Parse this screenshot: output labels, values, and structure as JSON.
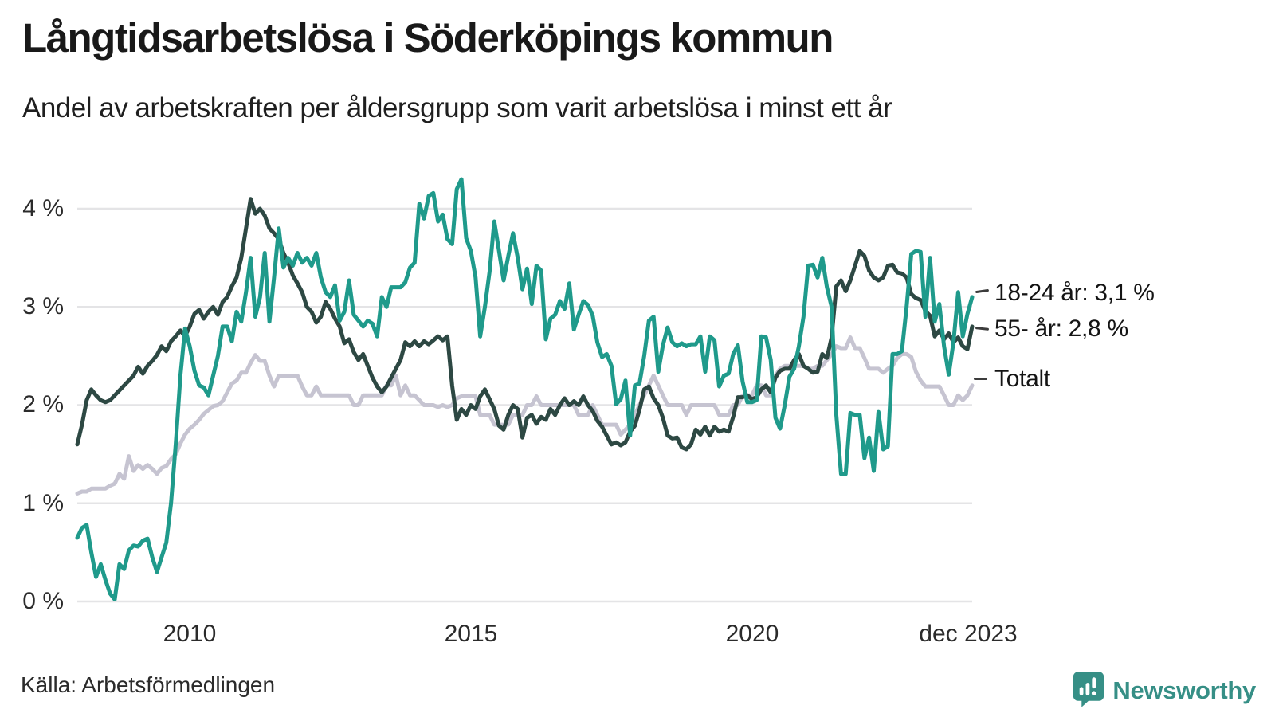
{
  "header": {
    "title": "Långtidsarbetslösa i Söderköpings kommun",
    "subtitle": "Andel av arbetskraften per åldersgrupp som varit arbetslösa i minst ett år"
  },
  "footer": {
    "source": "Källa: Arbetsförmedlingen",
    "brand": "Newsworthy"
  },
  "colors": {
    "series_18_24": "#1f9a8b",
    "series_55": "#2d4843",
    "series_total": "#c6c4d1",
    "gridline": "#e4e4e6",
    "brand_teal": "#368f86"
  },
  "chart_data": {
    "type": "line",
    "title": "Långtidsarbetslösa i Söderköpings kommun",
    "subtitle": "Andel av arbetskraften per åldersgrupp som varit arbetslösa i minst ett år",
    "unit": "%",
    "grid": true,
    "legend_position": "right-end-labels",
    "x_time": {
      "start_year": 2008,
      "start_month": 1,
      "end_label": "dec 2023",
      "frequency": "monthly"
    },
    "ylim": [
      0,
      4.38
    ],
    "y_ticks": [
      {
        "value": 0,
        "label": "0 %"
      },
      {
        "value": 1,
        "label": "1 %"
      },
      {
        "value": 2,
        "label": "2 %"
      },
      {
        "value": 3,
        "label": "3 %"
      },
      {
        "value": 4,
        "label": "4 %"
      }
    ],
    "x_ticks": [
      {
        "month_index": 24,
        "label": "2010"
      },
      {
        "month_index": 84,
        "label": "2015"
      },
      {
        "month_index": 144,
        "label": "2020"
      },
      {
        "month_index": 191,
        "label": "dec 2023"
      }
    ],
    "series": [
      {
        "name": "18-24 år",
        "end_label": "18-24 år: 3,1 %",
        "end_value": "3,1 %",
        "color": "#1f9a8b",
        "stroke_width": 5,
        "values": [
          0.65,
          0.75,
          0.78,
          0.5,
          0.25,
          0.38,
          0.22,
          0.08,
          0.02,
          0.38,
          0.33,
          0.52,
          0.57,
          0.56,
          0.62,
          0.64,
          0.45,
          0.3,
          0.45,
          0.6,
          1.0,
          1.6,
          2.3,
          2.78,
          2.6,
          2.35,
          2.2,
          2.18,
          2.1,
          2.3,
          2.5,
          2.8,
          2.8,
          2.65,
          2.95,
          2.85,
          3.15,
          3.5,
          2.9,
          3.1,
          3.55,
          2.85,
          3.3,
          3.8,
          3.4,
          3.5,
          3.42,
          3.55,
          3.45,
          3.5,
          3.42,
          3.55,
          3.3,
          3.15,
          3.1,
          3.22,
          2.86,
          2.95,
          3.27,
          2.92,
          2.86,
          2.8,
          2.86,
          2.83,
          2.7,
          3.1,
          3.0,
          3.2,
          3.2,
          3.2,
          3.25,
          3.4,
          3.45,
          4.05,
          3.9,
          4.13,
          4.16,
          3.87,
          3.94,
          3.69,
          3.64,
          4.2,
          4.3,
          3.7,
          3.57,
          3.3,
          2.7,
          3.0,
          3.36,
          3.87,
          3.57,
          3.27,
          3.52,
          3.75,
          3.5,
          3.18,
          3.39,
          3.03,
          3.42,
          3.37,
          2.67,
          2.88,
          2.92,
          3.06,
          2.98,
          3.24,
          2.77,
          2.92,
          3.06,
          3.02,
          2.91,
          2.64,
          2.49,
          2.52,
          2.4,
          2.01,
          2.06,
          2.25,
          1.69,
          2.2,
          2.22,
          2.5,
          2.86,
          2.9,
          2.34,
          2.61,
          2.79,
          2.64,
          2.6,
          2.63,
          2.6,
          2.62,
          2.62,
          2.7,
          2.34,
          2.7,
          2.66,
          2.19,
          2.3,
          2.32,
          2.52,
          2.61,
          2.24,
          2.03,
          2.03,
          2.05,
          2.7,
          2.69,
          2.46,
          1.87,
          1.76,
          2.0,
          2.29,
          2.37,
          2.6,
          2.9,
          3.42,
          3.43,
          3.3,
          3.5,
          3.2,
          3.0,
          1.9,
          1.3,
          1.3,
          1.92,
          1.9,
          1.9,
          1.46,
          1.67,
          1.33,
          1.93,
          1.55,
          1.58,
          2.52,
          2.52,
          2.55,
          3.0,
          3.54,
          3.57,
          3.56,
          2.9,
          3.5,
          2.85,
          3.03,
          2.6,
          2.31,
          2.64,
          3.15,
          2.7,
          2.93,
          3.1
        ]
      },
      {
        "name": "55- år",
        "end_label": "55- år: 2,8 %",
        "end_value": "2,8 %",
        "color": "#2d4843",
        "stroke_width": 5,
        "values": [
          1.6,
          1.8,
          2.05,
          2.16,
          2.1,
          2.05,
          2.03,
          2.05,
          2.1,
          2.15,
          2.2,
          2.25,
          2.3,
          2.39,
          2.32,
          2.4,
          2.45,
          2.51,
          2.6,
          2.55,
          2.65,
          2.7,
          2.76,
          2.7,
          2.8,
          2.93,
          2.97,
          2.88,
          2.95,
          3.0,
          2.92,
          3.05,
          3.1,
          3.21,
          3.3,
          3.5,
          3.8,
          4.1,
          3.95,
          4.0,
          3.93,
          3.8,
          3.75,
          3.69,
          3.55,
          3.45,
          3.32,
          3.24,
          3.15,
          3.0,
          2.95,
          2.84,
          2.9,
          3.05,
          2.98,
          2.88,
          2.8,
          2.63,
          2.67,
          2.54,
          2.46,
          2.52,
          2.4,
          2.28,
          2.19,
          2.13,
          2.19,
          2.28,
          2.37,
          2.46,
          2.64,
          2.6,
          2.65,
          2.6,
          2.65,
          2.62,
          2.66,
          2.7,
          2.66,
          2.7,
          2.2,
          1.85,
          1.96,
          1.9,
          2.0,
          1.96,
          2.09,
          2.16,
          2.06,
          1.96,
          1.79,
          1.75,
          1.9,
          2.0,
          1.96,
          1.67,
          1.87,
          1.9,
          1.81,
          1.88,
          1.85,
          1.96,
          1.9,
          2.0,
          2.07,
          2.0,
          2.04,
          2.0,
          2.09,
          2.0,
          1.94,
          1.84,
          1.78,
          1.69,
          1.6,
          1.62,
          1.59,
          1.62,
          1.73,
          1.79,
          1.95,
          2.16,
          2.19,
          2.07,
          2.0,
          1.87,
          1.69,
          1.66,
          1.67,
          1.57,
          1.55,
          1.6,
          1.75,
          1.7,
          1.78,
          1.69,
          1.78,
          1.73,
          1.75,
          1.73,
          1.88,
          2.08,
          2.08,
          2.1,
          2.06,
          2.08,
          2.16,
          2.2,
          2.13,
          2.28,
          2.35,
          2.37,
          2.37,
          2.46,
          2.52,
          2.4,
          2.37,
          2.33,
          2.34,
          2.52,
          2.48,
          2.69,
          3.21,
          3.27,
          3.16,
          3.27,
          3.42,
          3.57,
          3.52,
          3.37,
          3.3,
          3.27,
          3.3,
          3.42,
          3.43,
          3.35,
          3.34,
          3.3,
          3.13,
          3.09,
          3.07,
          2.96,
          2.91,
          2.7,
          2.76,
          2.67,
          2.73,
          2.64,
          2.69,
          2.6,
          2.57,
          2.8
        ]
      },
      {
        "name": "Totalt",
        "end_label": "Totalt",
        "end_value": "",
        "color": "#c6c4d1",
        "stroke_width": 5,
        "values": [
          1.1,
          1.12,
          1.12,
          1.15,
          1.15,
          1.15,
          1.15,
          1.18,
          1.2,
          1.3,
          1.25,
          1.48,
          1.33,
          1.39,
          1.35,
          1.39,
          1.35,
          1.3,
          1.36,
          1.38,
          1.45,
          1.5,
          1.61,
          1.7,
          1.76,
          1.8,
          1.85,
          1.91,
          1.95,
          1.99,
          2.0,
          2.04,
          2.13,
          2.22,
          2.25,
          2.33,
          2.33,
          2.43,
          2.51,
          2.45,
          2.45,
          2.3,
          2.19,
          2.3,
          2.3,
          2.3,
          2.3,
          2.3,
          2.19,
          2.1,
          2.1,
          2.19,
          2.1,
          2.1,
          2.1,
          2.1,
          2.1,
          2.1,
          2.1,
          2.0,
          2.0,
          2.1,
          2.1,
          2.1,
          2.1,
          2.1,
          2.2,
          2.2,
          2.3,
          2.1,
          2.2,
          2.1,
          2.1,
          2.05,
          2.0,
          2.0,
          2.0,
          1.98,
          2.0,
          1.98,
          2.0,
          2.07,
          2.09,
          2.09,
          2.09,
          2.09,
          1.9,
          1.9,
          1.9,
          1.8,
          1.8,
          1.8,
          1.8,
          1.9,
          1.9,
          1.9,
          2.0,
          2.0,
          2.09,
          2.0,
          2.0,
          2.0,
          2.0,
          2.0,
          2.0,
          2.0,
          2.0,
          1.9,
          1.9,
          1.9,
          2.0,
          1.9,
          1.8,
          1.8,
          1.8,
          1.8,
          1.7,
          1.75,
          1.8,
          1.9,
          2.0,
          2.1,
          2.2,
          2.3,
          2.2,
          2.1,
          2.0,
          2.0,
          2.0,
          2.0,
          1.9,
          2.0,
          2.0,
          2.0,
          2.0,
          2.0,
          2.0,
          1.9,
          1.9,
          1.9,
          2.0,
          2.0,
          2.1,
          2.1,
          2.1,
          2.2,
          2.2,
          2.1,
          2.1,
          2.3,
          2.37,
          2.4,
          2.4,
          2.4,
          2.4,
          2.4,
          2.37,
          2.37,
          2.4,
          2.4,
          2.46,
          2.52,
          2.6,
          2.58,
          2.58,
          2.69,
          2.58,
          2.58,
          2.48,
          2.37,
          2.37,
          2.37,
          2.33,
          2.37,
          2.4,
          2.48,
          2.52,
          2.52,
          2.49,
          2.34,
          2.25,
          2.19,
          2.19,
          2.19,
          2.19,
          2.1,
          2.0,
          2.0,
          2.1,
          2.05,
          2.1,
          2.2
        ]
      }
    ]
  }
}
